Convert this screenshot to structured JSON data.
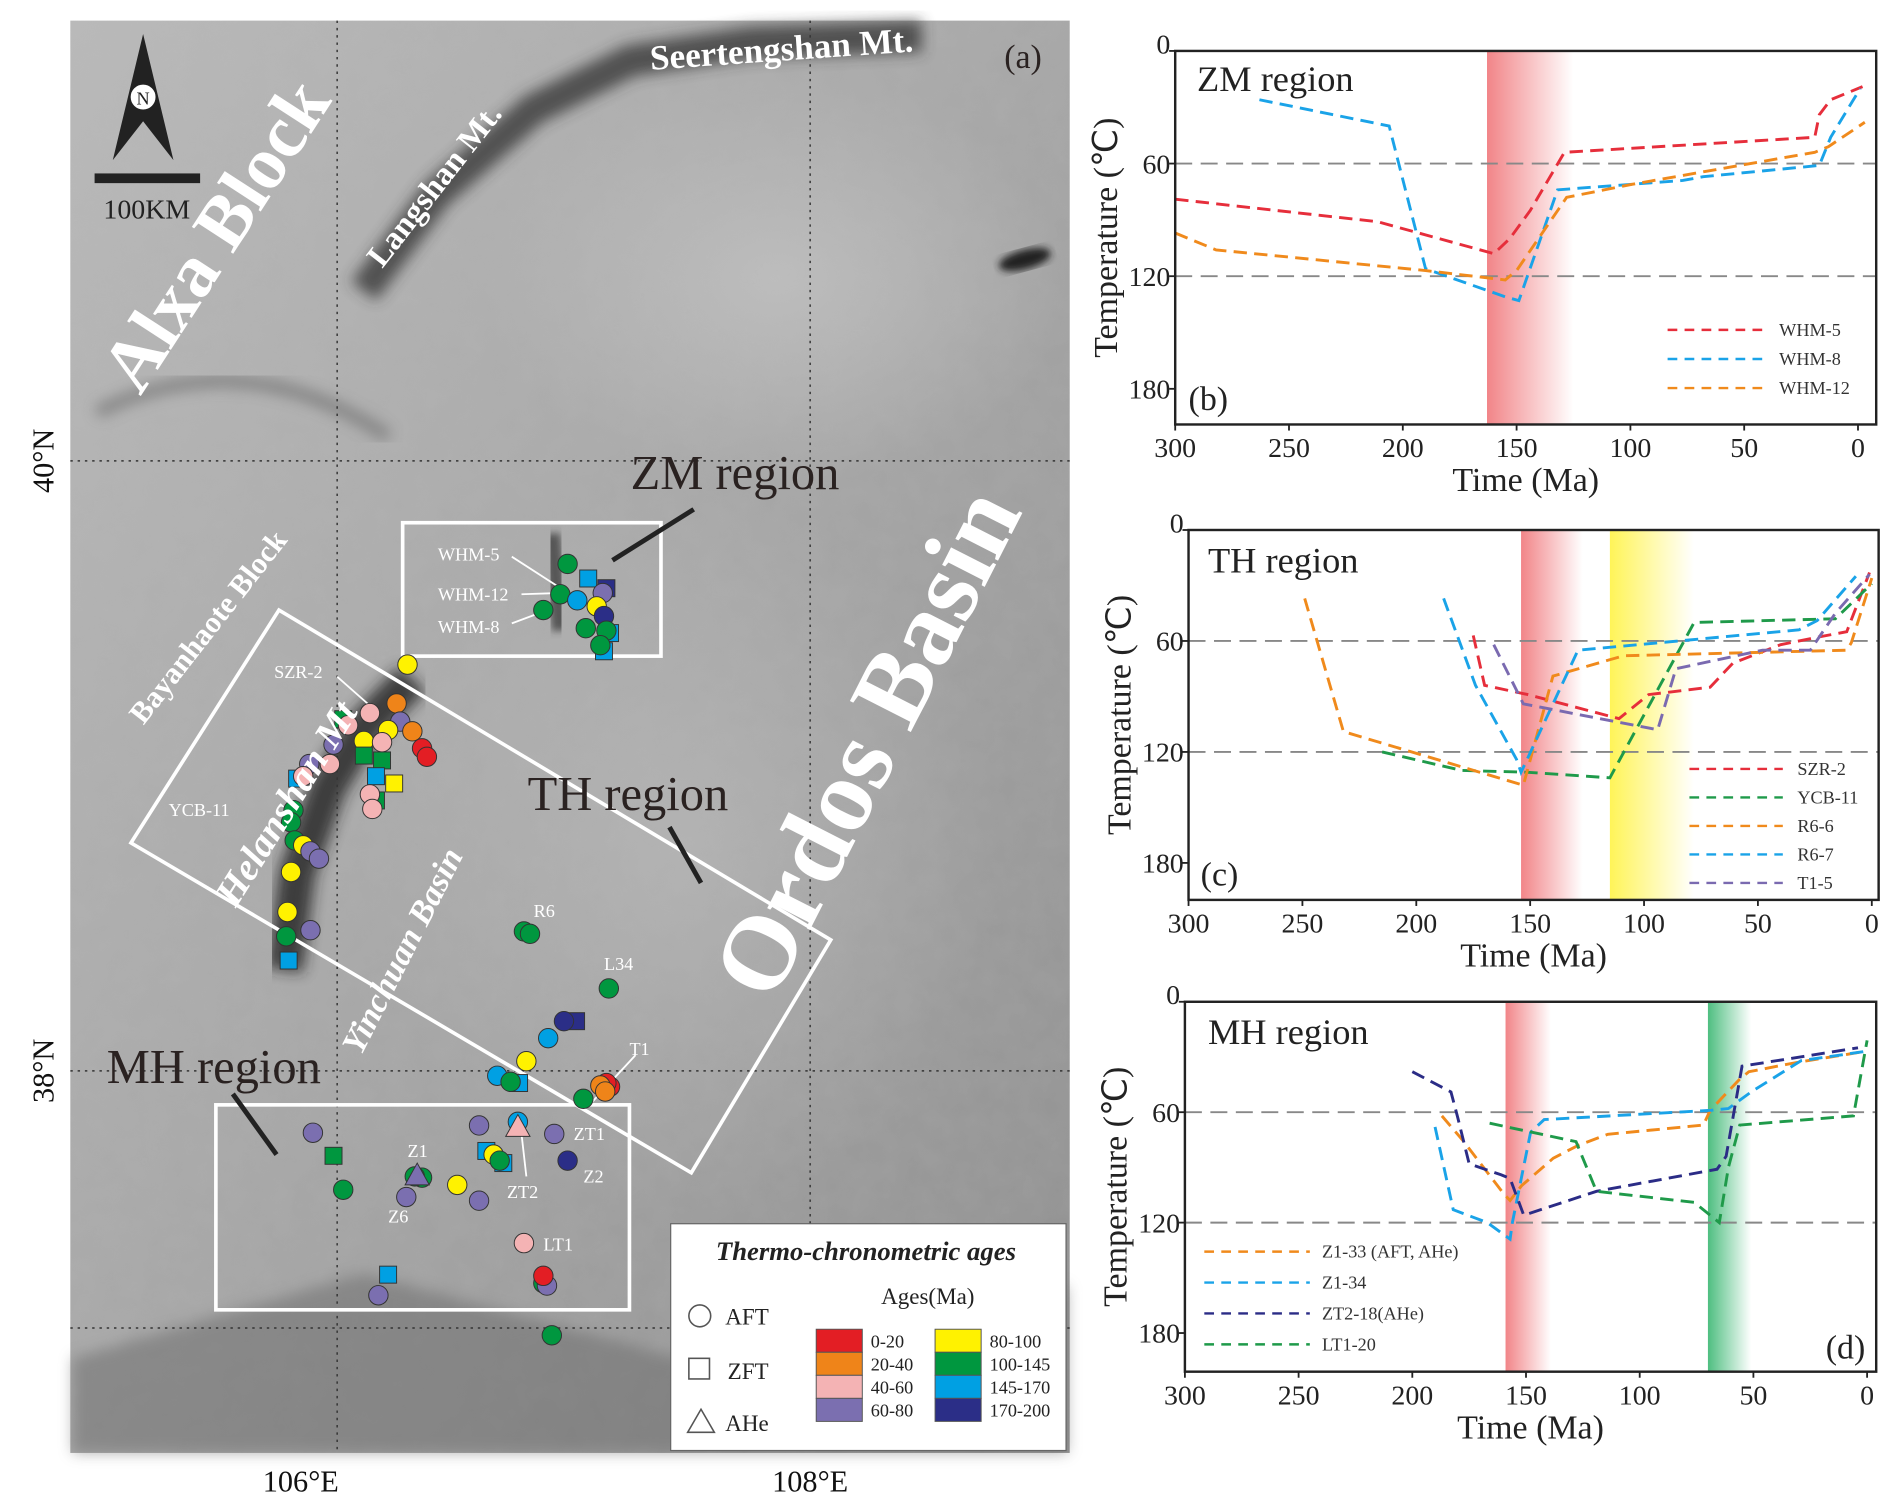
{
  "map": {
    "panel_label": "(a)",
    "north_label": "N",
    "scale_label": "100KM",
    "lon_labels": [
      "106°E",
      "108°E"
    ],
    "lat_labels": [
      "40°N",
      "38°N"
    ],
    "place_labels": {
      "alxa": "Alxa Block",
      "langshan": "Langshan Mt.",
      "seertengshan": "Seertengshan Mt.",
      "bayanhaote": "Bayanhaote Block",
      "helanshan": "Helanshan Mt",
      "yinchuan": "Yinchuan Basin",
      "ordos": "Ordos Basin"
    },
    "regions": {
      "zm": "ZM region",
      "th": "TH region",
      "mh": "MH region"
    },
    "sample_labels": [
      "WHM-5",
      "WHM-12",
      "WHM-8",
      "SZR-2",
      "YCB-11",
      "R6",
      "L34",
      "T1",
      "ZT1",
      "Z1",
      "Z2",
      "ZT2",
      "Z6",
      "LT1"
    ],
    "legend": {
      "title": "Thermo-chronometric ages",
      "methods": [
        {
          "shape": "circle",
          "label": "AFT"
        },
        {
          "shape": "square",
          "label": "ZFT"
        },
        {
          "shape": "triangle",
          "label": "AHe"
        }
      ],
      "ages_title": "Ages(Ma)",
      "age_classes": [
        {
          "label": "0-20",
          "color": "#e31e24"
        },
        {
          "label": "20-40",
          "color": "#ef8419"
        },
        {
          "label": "40-60",
          "color": "#f4b3b4"
        },
        {
          "label": "60-80",
          "color": "#7b6fb0"
        },
        {
          "label": "80-100",
          "color": "#fff200"
        },
        {
          "label": "100-145",
          "color": "#00973f"
        },
        {
          "label": "145-170",
          "color": "#00a0e3"
        },
        {
          "label": "170-200",
          "color": "#2b2e87"
        }
      ]
    }
  },
  "chart_data": [
    {
      "type": "line",
      "panel": "(b)",
      "title": "ZM region",
      "xlabel": "Time (Ma)",
      "ylabel": "Temperature (℃)",
      "xlim": [
        300,
        -8
      ],
      "ylim": [
        0,
        199
      ],
      "y_inverted": true,
      "x_inverted": true,
      "xticks": [
        300,
        250,
        200,
        150,
        100,
        50,
        0
      ],
      "yticks": [
        0,
        60,
        120,
        180
      ],
      "reference_lines": [
        60,
        120
      ],
      "legend_position": "bottom-right",
      "bands": [
        {
          "from": 163,
          "to": 125,
          "color": "#ef6f73"
        }
      ],
      "series": [
        {
          "name": "WHM-5",
          "color": "#e62e3b",
          "points": [
            [
              300,
              79
            ],
            [
              211,
              91
            ],
            [
              160,
              108
            ],
            [
              153,
              100
            ],
            [
              144,
              85
            ],
            [
              129,
              54
            ],
            [
              19,
              46
            ],
            [
              17,
              34
            ],
            [
              12,
              26
            ],
            [
              -2,
              19
            ]
          ]
        },
        {
          "name": "WHM-8",
          "color": "#1aa3e8",
          "points": [
            [
              263,
              26
            ],
            [
              206,
              40
            ],
            [
              190,
              116
            ],
            [
              155,
              131
            ],
            [
              149,
              133
            ],
            [
              132,
              74
            ],
            [
              99,
              71
            ],
            [
              77,
              69
            ],
            [
              68,
              67
            ],
            [
              17,
              61
            ],
            [
              12,
              46
            ],
            [
              -1,
              20
            ]
          ]
        },
        {
          "name": "WHM-12",
          "color": "#f08a1c",
          "points": [
            [
              300,
              97
            ],
            [
              282,
              106
            ],
            [
              190,
              117
            ],
            [
              155,
              122
            ],
            [
              150,
              117
            ],
            [
              128,
              78
            ],
            [
              99,
              71
            ],
            [
              19,
              54
            ],
            [
              13,
              51
            ],
            [
              -3,
              38
            ]
          ]
        }
      ]
    },
    {
      "type": "line",
      "panel": "(c)",
      "title": "TH region",
      "xlabel": "Time (Ma)",
      "ylabel": "Temperature (℃)",
      "xlim": [
        300,
        -3
      ],
      "ylim": [
        0,
        200
      ],
      "y_inverted": true,
      "x_inverted": true,
      "xticks": [
        300,
        250,
        200,
        150,
        100,
        50,
        0
      ],
      "yticks": [
        0,
        60,
        120,
        180
      ],
      "reference_lines": [
        60,
        120
      ],
      "legend_position": "bottom-right",
      "bands": [
        {
          "from": 154,
          "to": 127,
          "color": "#ef6f73"
        },
        {
          "from": 115,
          "to": 78,
          "color": "#fff23a"
        }
      ],
      "series": [
        {
          "name": "SZR-2",
          "color": "#e62e3b",
          "points": [
            [
              175,
              57
            ],
            [
              170,
              84
            ],
            [
              151,
              89
            ],
            [
              111,
              102
            ],
            [
              98,
              89
            ],
            [
              71,
              85
            ],
            [
              61,
              72
            ],
            [
              40,
              62
            ],
            [
              24,
              58
            ],
            [
              11,
              55
            ],
            [
              1,
              23
            ]
          ]
        },
        {
          "name": "YCB-11",
          "color": "#1f9a4a",
          "points": [
            [
              215,
              120
            ],
            [
              180,
              130
            ],
            [
              151,
              131
            ],
            [
              115,
              134
            ],
            [
              78,
              50
            ],
            [
              16,
              48
            ],
            [
              0,
              29
            ]
          ]
        },
        {
          "name": "R6-6",
          "color": "#f08a1c",
          "points": [
            [
              249,
              37
            ],
            [
              232,
              109
            ],
            [
              153,
              138
            ],
            [
              140,
              79
            ],
            [
              109,
              68
            ],
            [
              11,
              65
            ],
            [
              9,
              61
            ],
            [
              0,
              26
            ]
          ]
        },
        {
          "name": "R6-7",
          "color": "#1aa3e8",
          "points": [
            [
              188,
              37
            ],
            [
              174,
              84
            ],
            [
              156,
              124
            ],
            [
              154,
              131
            ],
            [
              129,
              65
            ],
            [
              32,
              54
            ],
            [
              24,
              49
            ],
            [
              7,
              25
            ]
          ]
        },
        {
          "name": "T1-5",
          "color": "#7a6ab0",
          "points": [
            [
              166,
              62
            ],
            [
              153,
              94
            ],
            [
              111,
              104
            ],
            [
              94,
              108
            ],
            [
              86,
              75
            ],
            [
              48,
              65
            ],
            [
              27,
              65
            ],
            [
              16,
              45
            ],
            [
              1,
              24
            ]
          ]
        }
      ]
    },
    {
      "type": "line",
      "panel": "(d)",
      "title": "MH region",
      "xlabel": "Time (Ma)",
      "ylabel": "Temperature (℃)",
      "xlim": [
        300,
        -4
      ],
      "ylim": [
        0,
        201
      ],
      "y_inverted": true,
      "x_inverted": true,
      "xticks": [
        300,
        250,
        200,
        150,
        100,
        50,
        0
      ],
      "yticks": [
        0,
        60,
        120,
        180
      ],
      "reference_lines": [
        60,
        120
      ],
      "legend_position": "bottom-left",
      "bands": [
        {
          "from": 159,
          "to": 139,
          "color": "#ef6f73"
        },
        {
          "from": 70,
          "to": 51,
          "color": "#2fb36a"
        }
      ],
      "series": [
        {
          "name": "Z1-33 (AFT, AHe)",
          "color": "#f08a1c",
          "points": [
            [
              187,
              62
            ],
            [
              178,
              75
            ],
            [
              160,
              104
            ],
            [
              157,
              108
            ],
            [
              152,
              100
            ],
            [
              138,
              85
            ],
            [
              127,
              78
            ],
            [
              114,
              72
            ],
            [
              72,
              67
            ],
            [
              69,
              59
            ],
            [
              56,
              42
            ],
            [
              52,
              38
            ],
            [
              31,
              33
            ],
            [
              1,
              27
            ]
          ]
        },
        {
          "name": "Z1-34",
          "color": "#1aa3e8",
          "points": [
            [
              190,
              68
            ],
            [
              182,
              113
            ],
            [
              167,
              120
            ],
            [
              157,
              129
            ],
            [
              156,
              120
            ],
            [
              148,
              71
            ],
            [
              142,
              64
            ],
            [
              69,
              59
            ],
            [
              61,
              58
            ],
            [
              51,
              49
            ],
            [
              29,
              32
            ],
            [
              1,
              27
            ]
          ]
        },
        {
          "name": "ZT2-18(AHe)",
          "color": "#2b2c86",
          "points": [
            [
              200,
              38
            ],
            [
              183,
              49
            ],
            [
              180,
              63
            ],
            [
              175,
              88
            ],
            [
              161,
              94
            ],
            [
              157,
              96
            ],
            [
              151,
              116
            ],
            [
              119,
              103
            ],
            [
              66,
              91
            ],
            [
              62,
              84
            ],
            [
              55,
              35
            ],
            [
              4,
              25
            ]
          ]
        },
        {
          "name": "LT1-20",
          "color": "#1f9a4a",
          "points": [
            [
              166,
              66
            ],
            [
              128,
              76
            ],
            [
              119,
              103
            ],
            [
              76,
              109
            ],
            [
              65,
              120
            ],
            [
              61,
              90
            ],
            [
              56,
              67
            ],
            [
              6,
              62
            ],
            [
              0,
              21
            ]
          ]
        }
      ]
    }
  ]
}
